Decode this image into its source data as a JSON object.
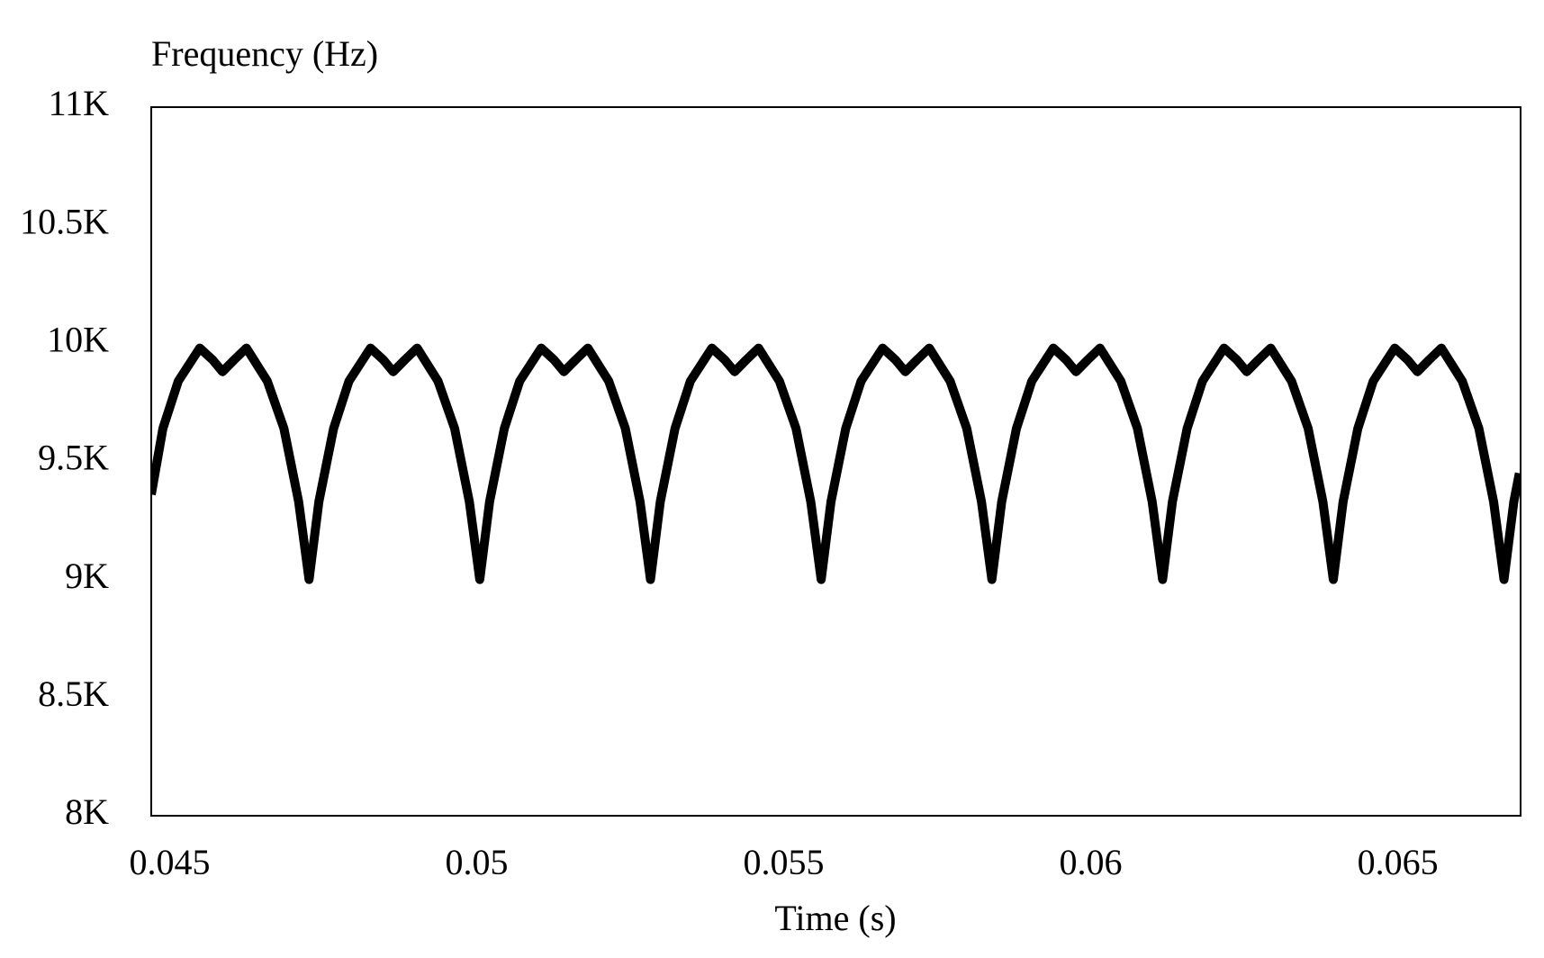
{
  "chart_data": {
    "type": "line",
    "y_label": "Frequency (Hz)",
    "x_label": "Time (s)",
    "color": "#000000",
    "xlim": [
      0.0447,
      0.067
    ],
    "ylim": [
      8000,
      11000
    ],
    "xticks": [
      0.045,
      0.05,
      0.055,
      0.06,
      0.065
    ],
    "yticks": [
      {
        "value": 8000,
        "label": "8K"
      },
      {
        "value": 8500,
        "label": "8.5K"
      },
      {
        "value": 9000,
        "label": "9K"
      },
      {
        "value": 9500,
        "label": "9.5K"
      },
      {
        "value": 10000,
        "label": "10K"
      },
      {
        "value": 10500,
        "label": "10.5K"
      },
      {
        "value": 11000,
        "label": "11K"
      }
    ],
    "x": [
      0.0447,
      0.04489,
      0.04514,
      0.04549,
      0.0457,
      0.04586,
      0.04605,
      0.04625,
      0.04659,
      0.04686,
      0.0471,
      0.04727,
      0.04743,
      0.04767,
      0.04792,
      0.04827,
      0.04848,
      0.04864,
      0.04883,
      0.04903,
      0.04937,
      0.04964,
      0.04988,
      0.05005,
      0.05021,
      0.05045,
      0.0507,
      0.05105,
      0.05126,
      0.05142,
      0.05161,
      0.05181,
      0.05215,
      0.05242,
      0.05266,
      0.05283,
      0.05299,
      0.05323,
      0.05348,
      0.05383,
      0.05404,
      0.0542,
      0.05439,
      0.05459,
      0.05493,
      0.0552,
      0.05544,
      0.05561,
      0.05577,
      0.05601,
      0.05626,
      0.05661,
      0.05682,
      0.05698,
      0.05717,
      0.05737,
      0.05771,
      0.05798,
      0.05822,
      0.05839,
      0.05855,
      0.05879,
      0.05904,
      0.05939,
      0.0596,
      0.05976,
      0.05995,
      0.06015,
      0.06049,
      0.06076,
      0.061,
      0.06117,
      0.06133,
      0.06157,
      0.06182,
      0.06217,
      0.06238,
      0.06254,
      0.06273,
      0.06293,
      0.06327,
      0.06354,
      0.06378,
      0.06395,
      0.06411,
      0.06435,
      0.0646,
      0.06495,
      0.06516,
      0.06532,
      0.06551,
      0.06571,
      0.06605,
      0.06632,
      0.06656,
      0.06673,
      0.06689,
      0.06698
    ],
    "values": [
      9360,
      9640,
      9840,
      9980,
      9930,
      9880,
      9930,
      9980,
      9840,
      9640,
      9330,
      9000,
      9330,
      9640,
      9840,
      9980,
      9930,
      9880,
      9930,
      9980,
      9840,
      9640,
      9330,
      9000,
      9330,
      9640,
      9840,
      9980,
      9930,
      9880,
      9930,
      9980,
      9840,
      9640,
      9330,
      9000,
      9330,
      9640,
      9840,
      9980,
      9930,
      9880,
      9930,
      9980,
      9840,
      9640,
      9330,
      9000,
      9330,
      9640,
      9840,
      9980,
      9930,
      9880,
      9930,
      9980,
      9840,
      9640,
      9330,
      9000,
      9330,
      9640,
      9840,
      9980,
      9930,
      9880,
      9930,
      9980,
      9840,
      9640,
      9330,
      9000,
      9330,
      9640,
      9840,
      9980,
      9930,
      9880,
      9930,
      9980,
      9840,
      9640,
      9330,
      9000,
      9330,
      9640,
      9840,
      9980,
      9930,
      9880,
      9930,
      9980,
      9840,
      9640,
      9330,
      9000,
      9330,
      9450
    ]
  }
}
